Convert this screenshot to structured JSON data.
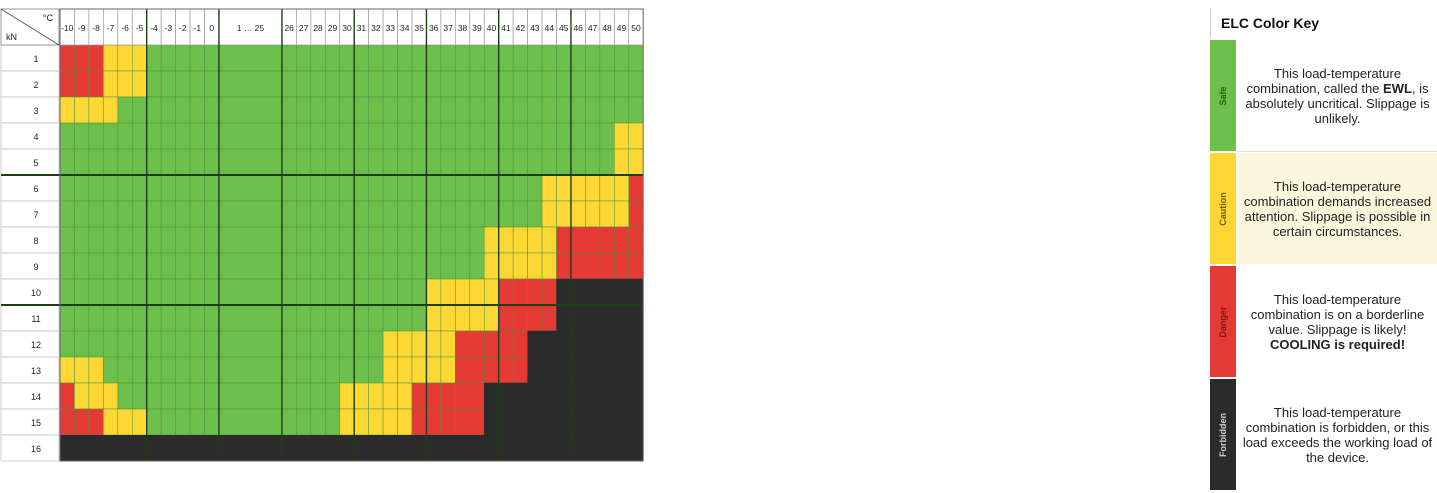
{
  "chart_data": {
    "type": "heatmap",
    "corner": {
      "temp_unit": "°C",
      "load_unit": "kN"
    },
    "columns": [
      "-10",
      "-9",
      "-8",
      "-7",
      "-6",
      "-5",
      "-4",
      "-3",
      "-2",
      "-1",
      "0",
      "1 … 25",
      "26",
      "27",
      "28",
      "29",
      "30",
      "31",
      "32",
      "33",
      "34",
      "35",
      "36",
      "37",
      "38",
      "39",
      "40",
      "41",
      "42",
      "43",
      "44",
      "45",
      "46",
      "47",
      "48",
      "49",
      "50"
    ],
    "rows": [
      "1",
      "2",
      "3",
      "4",
      "5",
      "6",
      "7",
      "8",
      "9",
      "10",
      "11",
      "12",
      "13",
      "14",
      "15",
      "16"
    ],
    "categories": {
      "G": "Safe",
      "Y": "Caution",
      "R": "Danger",
      "B": "Forbidden"
    },
    "colors": {
      "G": "#6dbf4b",
      "Y": "#fdd835",
      "R": "#e53935",
      "B": "#2b2b2b",
      "grid": "#3a6e2c",
      "header_bg": "#ffffff"
    },
    "grid": [
      "RRRYYYGGGGGGGGGGGGGGGGGGGGGGGGGGGGGGG",
      "RRRYYYGGGGGGGGGGGGGGGGGGGGGGGGGGGGGGG",
      "YYYYGGGGGGGGGGGGGGGGGGGGGGGGGGGGGGGGG",
      "GGGGGGGGGGGGGGGGGGGGGGGGGGGGGGGGGGGYY",
      "GGGGGGGGGGGGGGGGGGGGGGGGGGGGGGGGGGGYY",
      "GGGGGGGGGGGGGGGGGGGGGGGGGGGGGGYYYYYYR",
      "GGGGGGGGGGGGGGGGGGGGGGGGGGGGGGYYYYYYR",
      "GGGGGGGGGGGGGGGGGGGGGGGGGGYYYYYRRRRRR",
      "GGGGGGGGGGGGGGGGGGGGGGGGGGYYYYYRRRRRR",
      "GGGGGGGGGGGGGGGGGGGGGGYYYYYRRRRBBBBBB",
      "GGGGGGGGGGGGGGGGGGGGGGYYYYYRRRRBBBBBB",
      "GGGGGGGGGGGGGGGGGGGYYYYYRRRRRBBBBBBBB",
      "YYYGGGGGGGGGGGGGGGGYYYYYRRRRRBBBBBBBB",
      "RYYYGGGGGGGGGGGGYYYYYRRRRRBBBBBBBBBBB",
      "RRRYYYGGGGGGGGGGYYYYYRRRRRBBBBBBBBBBB",
      "BBBBBBBBBBBBBBBBBBBBBBBBBBBBBBBBBBBBB"
    ]
  },
  "key": {
    "title": "ELC Color Key",
    "safe": {
      "label": "Safe",
      "line1": "This load-temperature combination, called the",
      "bold": "EWL",
      "line2": ", is absolutely uncritical. Slippage is unlikely."
    },
    "caution": {
      "label": "Caution",
      "text": "This load-temperature combination demands increased attention. Slippage is possible in certain circumstances."
    },
    "danger": {
      "label": "Danger",
      "text": "This load-temperature combination is on a borderline value. Slippage is likely!",
      "bold": "COOLING is required!"
    },
    "forbidden": {
      "label": "Forbidden",
      "text": "This load-temperature combination is forbidden, or this load exceeds the working load of the device."
    }
  }
}
